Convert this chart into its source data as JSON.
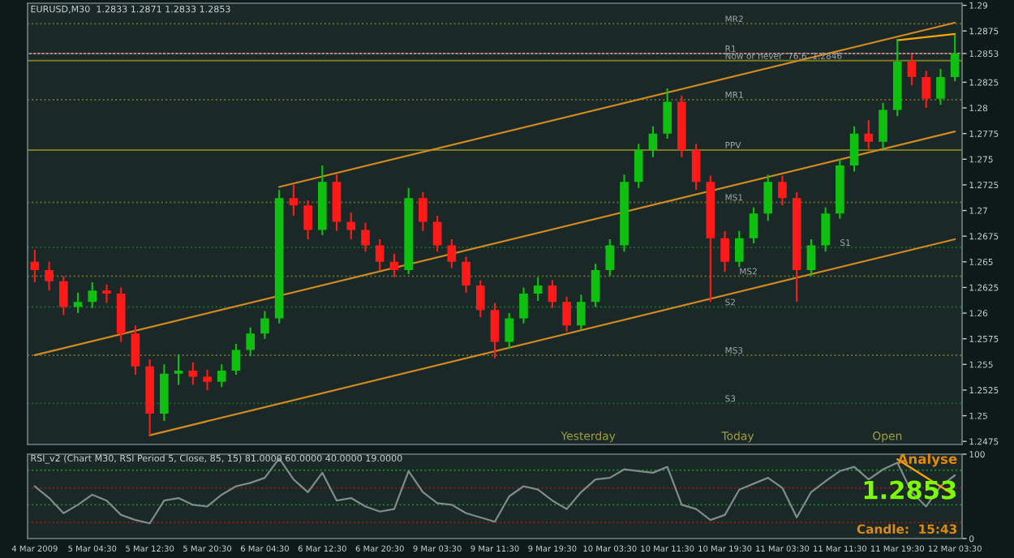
{
  "chart_data": [
    {
      "type": "candlestick",
      "title": "EURUSD,M30  1.2833 1.2871 1.2833 1.2853",
      "tick_labels": "y",
      "categories": [
        null,
        null,
        null,
        null,
        null,
        null,
        null,
        null,
        null,
        null,
        null,
        null,
        null,
        null,
        null,
        null,
        null,
        null,
        null,
        null,
        null,
        null,
        null,
        null,
        null,
        null,
        null,
        null,
        null,
        null,
        null,
        null,
        null,
        null,
        null,
        null,
        null,
        null,
        null,
        null,
        null,
        null,
        null,
        null,
        null,
        null,
        null,
        null,
        null,
        null,
        null,
        null,
        null,
        null,
        null,
        null,
        null,
        null,
        null,
        null,
        null,
        null,
        null,
        null,
        null
      ],
      "ohlc": [
        [
          1.265,
          1.2662,
          1.263,
          1.2642
        ],
        [
          1.2642,
          1.265,
          1.2622,
          1.2631
        ],
        [
          1.2631,
          1.2636,
          1.2598,
          1.2606
        ],
        [
          1.2606,
          1.262,
          1.26,
          1.2611
        ],
        [
          1.2611,
          1.263,
          1.2605,
          1.2622
        ],
        [
          1.2622,
          1.2628,
          1.261,
          1.2619
        ],
        [
          1.2619,
          1.2625,
          1.2572,
          1.258
        ],
        [
          1.258,
          1.2588,
          1.254,
          1.2548
        ],
        [
          1.2548,
          1.2555,
          1.2481,
          1.2502
        ],
        [
          1.2502,
          1.255,
          1.2495,
          1.2541
        ],
        [
          1.2541,
          1.256,
          1.253,
          1.2544
        ],
        [
          1.2544,
          1.2552,
          1.253,
          1.2538
        ],
        [
          1.2538,
          1.2545,
          1.2525,
          1.2533
        ],
        [
          1.2533,
          1.255,
          1.2528,
          1.2544
        ],
        [
          1.2544,
          1.257,
          1.254,
          1.2564
        ],
        [
          1.2564,
          1.2586,
          1.2558,
          1.258
        ],
        [
          1.258,
          1.2602,
          1.2575,
          1.2595
        ],
        [
          1.2595,
          1.272,
          1.259,
          1.2712
        ],
        [
          1.2712,
          1.2725,
          1.2695,
          1.2705
        ],
        [
          1.2705,
          1.271,
          1.2672,
          1.2681
        ],
        [
          1.2681,
          1.2744,
          1.2676,
          1.2728
        ],
        [
          1.2728,
          1.2735,
          1.268,
          1.2689
        ],
        [
          1.2689,
          1.2698,
          1.2672,
          1.2681
        ],
        [
          1.2681,
          1.2688,
          1.266,
          1.2666
        ],
        [
          1.2666,
          1.2672,
          1.2642,
          1.265
        ],
        [
          1.265,
          1.2658,
          1.2635,
          1.2642
        ],
        [
          1.2642,
          1.2722,
          1.2638,
          1.2712
        ],
        [
          1.2712,
          1.2718,
          1.268,
          1.2689
        ],
        [
          1.2689,
          1.2695,
          1.266,
          1.2666
        ],
        [
          1.2666,
          1.2672,
          1.2644,
          1.265
        ],
        [
          1.265,
          1.2655,
          1.262,
          1.2627
        ],
        [
          1.2627,
          1.2632,
          1.2596,
          1.2603
        ],
        [
          1.2603,
          1.261,
          1.2556,
          1.2572
        ],
        [
          1.2572,
          1.26,
          1.2565,
          1.2595
        ],
        [
          1.2595,
          1.2625,
          1.259,
          1.2619
        ],
        [
          1.2619,
          1.2635,
          1.2612,
          1.2627
        ],
        [
          1.2627,
          1.2632,
          1.2605,
          1.2611
        ],
        [
          1.2611,
          1.2616,
          1.2582,
          1.2588
        ],
        [
          1.2588,
          1.2618,
          1.2584,
          1.2611
        ],
        [
          1.2611,
          1.2648,
          1.2606,
          1.2642
        ],
        [
          1.2642,
          1.2672,
          1.2636,
          1.2666
        ],
        [
          1.2666,
          1.2735,
          1.266,
          1.2728
        ],
        [
          1.2728,
          1.2765,
          1.2722,
          1.2759
        ],
        [
          1.2759,
          1.2782,
          1.2752,
          1.2775
        ],
        [
          1.2775,
          1.2819,
          1.277,
          1.2806
        ],
        [
          1.2806,
          1.2812,
          1.2752,
          1.2759
        ],
        [
          1.2759,
          1.2765,
          1.272,
          1.2728
        ],
        [
          1.2728,
          1.2734,
          1.2611,
          1.2673
        ],
        [
          1.2673,
          1.268,
          1.264,
          1.265
        ],
        [
          1.265,
          1.268,
          1.2645,
          1.2673
        ],
        [
          1.2673,
          1.2703,
          1.2668,
          1.2697
        ],
        [
          1.2697,
          1.2735,
          1.269,
          1.2728
        ],
        [
          1.2728,
          1.2734,
          1.2705,
          1.2712
        ],
        [
          1.2712,
          1.2718,
          1.2611,
          1.2642
        ],
        [
          1.2642,
          1.2672,
          1.2636,
          1.2666
        ],
        [
          1.2666,
          1.2703,
          1.266,
          1.2697
        ],
        [
          1.2697,
          1.275,
          1.2692,
          1.2744
        ],
        [
          1.2744,
          1.2782,
          1.2738,
          1.2775
        ],
        [
          1.2775,
          1.2788,
          1.276,
          1.2767
        ],
        [
          1.2767,
          1.2805,
          1.276,
          1.2798
        ],
        [
          1.2798,
          1.2867,
          1.2792,
          1.2845
        ],
        [
          1.2845,
          1.2852,
          1.2822,
          1.283
        ],
        [
          1.283,
          1.2836,
          1.28,
          1.2809
        ],
        [
          1.2809,
          1.2838,
          1.2803,
          1.283
        ],
        [
          1.283,
          1.2871,
          1.2826,
          1.2853
        ]
      ],
      "series": [
        {
          "type": "line",
          "color": "#d08a20",
          "values": [
            null,
            null,
            null,
            null,
            null,
            null,
            null,
            null,
            null,
            null,
            null,
            null,
            null,
            null,
            null,
            null,
            null,
            1.2723,
            null,
            null,
            null,
            null,
            null,
            null,
            null,
            null,
            null,
            null,
            null,
            null,
            null,
            null,
            null,
            null,
            null,
            null,
            null,
            null,
            null,
            null,
            null,
            null,
            null,
            null,
            null,
            null,
            null,
            null,
            null,
            null,
            null,
            null,
            null,
            null,
            null,
            null,
            null,
            null,
            null,
            null,
            null,
            null,
            null,
            null,
            1.2883
          ]
        },
        {
          "type": "line",
          "color": "#d08a20",
          "values": [
            1.2559,
            null,
            null,
            null,
            null,
            null,
            null,
            null,
            null,
            null,
            null,
            null,
            null,
            null,
            null,
            null,
            null,
            null,
            null,
            null,
            null,
            null,
            null,
            null,
            null,
            null,
            null,
            null,
            null,
            null,
            null,
            null,
            null,
            null,
            null,
            null,
            null,
            null,
            null,
            null,
            null,
            null,
            null,
            null,
            null,
            null,
            null,
            null,
            null,
            null,
            null,
            null,
            null,
            null,
            null,
            null,
            null,
            null,
            null,
            null,
            null,
            null,
            null,
            null,
            1.2777
          ]
        },
        {
          "type": "line",
          "color": "#d08a20",
          "values": [
            null,
            null,
            null,
            null,
            null,
            null,
            null,
            null,
            1.2481,
            null,
            null,
            null,
            null,
            null,
            null,
            null,
            null,
            null,
            null,
            null,
            null,
            null,
            null,
            null,
            null,
            null,
            null,
            null,
            null,
            null,
            null,
            null,
            null,
            null,
            null,
            null,
            null,
            null,
            null,
            null,
            null,
            null,
            null,
            null,
            null,
            null,
            null,
            null,
            null,
            null,
            null,
            null,
            null,
            null,
            null,
            null,
            null,
            null,
            null,
            null,
            null,
            null,
            null,
            null,
            1.2672
          ]
        },
        {
          "type": "line",
          "color": "#ffa500",
          "values": [
            null,
            null,
            null,
            null,
            null,
            null,
            null,
            null,
            null,
            null,
            null,
            null,
            null,
            null,
            null,
            null,
            null,
            null,
            null,
            null,
            null,
            null,
            null,
            null,
            null,
            null,
            null,
            null,
            null,
            null,
            null,
            null,
            null,
            null,
            null,
            null,
            null,
            null,
            null,
            null,
            null,
            null,
            null,
            null,
            null,
            null,
            null,
            null,
            null,
            null,
            null,
            null,
            null,
            null,
            null,
            null,
            null,
            null,
            null,
            null,
            1.2866,
            null,
            null,
            null,
            1.2872
          ]
        }
      ],
      "ylim": [
        1.2472,
        1.2902
      ],
      "yticks": [
        1.2475,
        1.25,
        1.2525,
        1.255,
        1.2575,
        1.26,
        1.2625,
        1.265,
        1.2675,
        1.27,
        1.2725,
        1.275,
        1.2775,
        1.28,
        1.2825,
        1.2853,
        1.2875,
        1.29
      ],
      "ref_lines": [
        {
          "axis": "y",
          "value": 1.2853,
          "label": null,
          "color": "#8c9a9a",
          "line_style": "solid"
        },
        {
          "axis": "y",
          "value": 1.2882,
          "label": "MR2",
          "color": "#6b6b2a",
          "line_style": "dotted"
        },
        {
          "axis": "y",
          "value": 1.2853,
          "label": "R1",
          "color": "#8b2020",
          "line_style": "dotted"
        },
        {
          "axis": "y",
          "value": 1.2846,
          "label": "Now or never  76.6  1.2846",
          "color": "#7a7a20",
          "line_style": "solid"
        },
        {
          "axis": "y",
          "value": 1.2808,
          "label": "MR1",
          "color": "#6b6b2a",
          "line_style": "dotted"
        },
        {
          "axis": "y",
          "value": 1.2759,
          "label": "PPV",
          "color": "#7a7a20",
          "line_style": "solid"
        },
        {
          "axis": "y",
          "value": 1.2708,
          "label": "MS1",
          "color": "#6b6b2a",
          "line_style": "dotted"
        },
        {
          "axis": "y",
          "value": 1.2664,
          "label": "S1",
          "color": "#1f6b2a",
          "line_style": "dotted"
        },
        {
          "axis": "y",
          "value": 1.2636,
          "label": "MS2",
          "color": "#6b6b2a",
          "line_style": "dotted"
        },
        {
          "axis": "y",
          "value": 1.2606,
          "label": "S2",
          "color": "#1f6b2a",
          "line_style": "dotted"
        },
        {
          "axis": "y",
          "value": 1.2559,
          "label": "MS3",
          "color": "#6b6b2a",
          "line_style": "dotted"
        },
        {
          "axis": "y",
          "value": 1.2512,
          "label": "S3",
          "color": "#1f6b2a",
          "line_style": "dotted"
        }
      ],
      "annotations": [
        "Yesterday",
        "Today",
        "Open"
      ]
    },
    {
      "type": "line",
      "title": "RSI_v2 (Chart M30, RSI Period 5, Close, 85, 15) 81.0000 60.0000 40.0000 19.0000",
      "categories": [
        "4 Mar 2009",
        null,
        null,
        null,
        "5 Mar 04:30",
        null,
        null,
        null,
        "5 Mar 12:30",
        null,
        null,
        null,
        "5 Mar 20:30",
        null,
        null,
        null,
        "6 Mar 04:30",
        null,
        null,
        null,
        "6 Mar 12:30",
        null,
        null,
        null,
        "6 Mar 20:30",
        null,
        null,
        null,
        "9 Mar 03:30",
        null,
        null,
        null,
        "9 Mar 11:30",
        null,
        null,
        null,
        "9 Mar 19:30",
        null,
        null,
        null,
        "10 Mar 03:30",
        null,
        null,
        null,
        "10 Mar 11:30",
        null,
        null,
        null,
        "10 Mar 19:30",
        null,
        null,
        null,
        "11 Mar 03:30",
        null,
        null,
        null,
        "11 Mar 11:30",
        null,
        null,
        null,
        "11 Mar 19:30",
        null,
        null,
        null,
        "12 Mar 03:30"
      ],
      "series": [
        {
          "color": "#7f8c8c",
          "values": [
            62,
            48,
            30,
            40,
            52,
            45,
            28,
            22,
            18,
            45,
            48,
            40,
            38,
            52,
            62,
            66,
            72,
            95,
            70,
            55,
            78,
            45,
            48,
            38,
            32,
            35,
            80,
            55,
            42,
            40,
            30,
            25,
            20,
            50,
            62,
            58,
            45,
            35,
            55,
            70,
            72,
            82,
            80,
            78,
            85,
            40,
            35,
            22,
            28,
            58,
            65,
            72,
            60,
            25,
            55,
            68,
            80,
            85,
            70,
            82,
            90,
            55,
            38,
            62,
            75
          ]
        },
        {
          "color": "#ffa500",
          "values": [
            null,
            null,
            null,
            null,
            null,
            null,
            null,
            null,
            null,
            null,
            null,
            null,
            null,
            null,
            null,
            null,
            null,
            null,
            null,
            null,
            null,
            null,
            null,
            null,
            null,
            null,
            null,
            null,
            null,
            null,
            null,
            null,
            null,
            null,
            null,
            null,
            null,
            null,
            null,
            null,
            null,
            null,
            null,
            null,
            null,
            null,
            null,
            null,
            null,
            null,
            null,
            null,
            null,
            null,
            null,
            null,
            null,
            null,
            null,
            null,
            94,
            null,
            null,
            null,
            51
          ]
        }
      ],
      "ylim": [
        0,
        100
      ],
      "yticks": [
        0,
        100
      ],
      "ref_lines": [
        {
          "axis": "y",
          "value": 81,
          "color": "#1f8a2a",
          "line_style": "dotted"
        },
        {
          "axis": "y",
          "value": 60,
          "color": "#a01818",
          "line_style": "dotted"
        },
        {
          "axis": "y",
          "value": 40,
          "color": "#1f8a2a",
          "line_style": "dotted"
        },
        {
          "axis": "y",
          "value": 19,
          "color": "#a01818",
          "line_style": "dotted"
        }
      ],
      "annotations": [
        "Analyse",
        "1.2853",
        "Candle:  15:43"
      ]
    }
  ]
}
